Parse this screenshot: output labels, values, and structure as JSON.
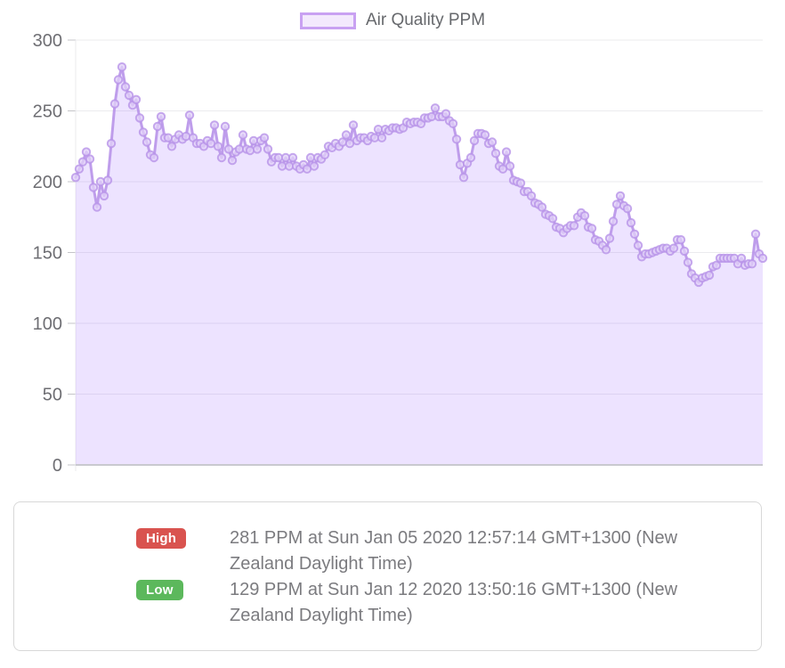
{
  "legend": {
    "label": "Air Quality PPM"
  },
  "chart_data": {
    "type": "area",
    "title": "",
    "xlabel": "",
    "ylabel": "",
    "legend_entries": [
      "Air Quality PPM"
    ],
    "legend_position": "top",
    "grid": true,
    "ylim": [
      0,
      300
    ],
    "y_ticks": [
      300,
      250,
      200,
      150,
      100,
      50,
      0
    ],
    "high_point": {
      "value": 281,
      "time": "Sun Jan 05 2020 12:57:14 GMT+1300 (New Zealand Daylight Time)"
    },
    "low_point": {
      "value": 129,
      "time": "Sun Jan 12 2020 13:50:16 GMT+1300 (New Zealand Daylight Time)"
    },
    "series": [
      {
        "name": "Air Quality PPM",
        "values": [
          203,
          209,
          214,
          221,
          216,
          196,
          182,
          200,
          190,
          201,
          227,
          255,
          272,
          281,
          267,
          261,
          254,
          258,
          245,
          235,
          228,
          219,
          217,
          239,
          246,
          231,
          231,
          225,
          230,
          233,
          230,
          232,
          247,
          231,
          227,
          227,
          225,
          229,
          227,
          240,
          225,
          217,
          239,
          223,
          215,
          221,
          223,
          233,
          223,
          222,
          229,
          223,
          229,
          231,
          223,
          214,
          217,
          217,
          211,
          217,
          211,
          217,
          211,
          209,
          212,
          209,
          217,
          211,
          217,
          216,
          219,
          225,
          224,
          227,
          225,
          228,
          233,
          227,
          240,
          229,
          231,
          231,
          229,
          232,
          231,
          237,
          231,
          237,
          236,
          238,
          238,
          237,
          238,
          242,
          241,
          242,
          242,
          241,
          245,
          245,
          246,
          252,
          246,
          246,
          248,
          243,
          241,
          230,
          212,
          203,
          213,
          217,
          229,
          234,
          234,
          233,
          227,
          228,
          220,
          211,
          209,
          221,
          211,
          201,
          200,
          199,
          193,
          193,
          190,
          185,
          184,
          182,
          177,
          176,
          174,
          168,
          167,
          164,
          167,
          169,
          169,
          175,
          178,
          176,
          168,
          167,
          159,
          158,
          155,
          152,
          160,
          172,
          184,
          190,
          183,
          181,
          171,
          163,
          155,
          147,
          149,
          149,
          150,
          151,
          152,
          153,
          153,
          151,
          153,
          159,
          159,
          151,
          143,
          135,
          132,
          129,
          132,
          133,
          134,
          140,
          141,
          146,
          146,
          146,
          146,
          146,
          142,
          146,
          141,
          142,
          142,
          163,
          149,
          146
        ]
      }
    ],
    "colors": {
      "line": "#b894e9",
      "point_fill": "#e2d2f8",
      "area_fill": "rgba(153,102,255,0.18)",
      "grid": "#ebebee",
      "axis": "#c9c9cf",
      "tick": "#c4c4c8",
      "tick_label": "#6e6e73",
      "legend_swatch_fill": "#f3e9fd",
      "legend_swatch_border": "#c9a1f2"
    }
  },
  "summary": {
    "rows": [
      {
        "badge": "High",
        "badge_color": "#d9534f",
        "text": "281 PPM at Sun Jan 05 2020 12:57:14 GMT+1300 (New Zealand Daylight Time)"
      },
      {
        "badge": "Low",
        "badge_color": "#5cb85c",
        "text": "129 PPM at Sun Jan 12 2020 13:50:16 GMT+1300 (New Zealand Daylight Time)"
      }
    ]
  }
}
